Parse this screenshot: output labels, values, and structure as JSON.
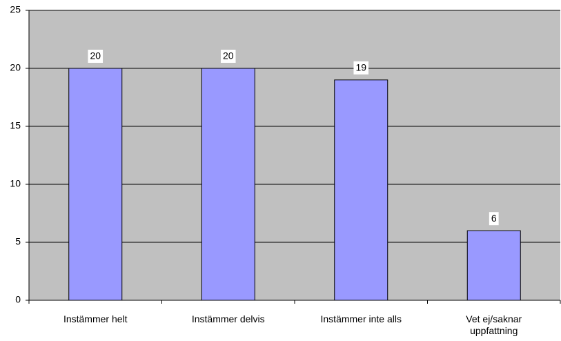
{
  "chart_data": {
    "type": "bar",
    "categories": [
      "Instämmer helt",
      "Instämmer delvis",
      "Instämmer inte alls",
      "Vet ej/saknar uppfattning"
    ],
    "values": [
      20,
      20,
      19,
      6
    ],
    "color": "#9999ff",
    "ylim": [
      0,
      25
    ],
    "yticks": [
      0,
      5,
      10,
      15,
      20,
      25
    ],
    "grid": true
  }
}
